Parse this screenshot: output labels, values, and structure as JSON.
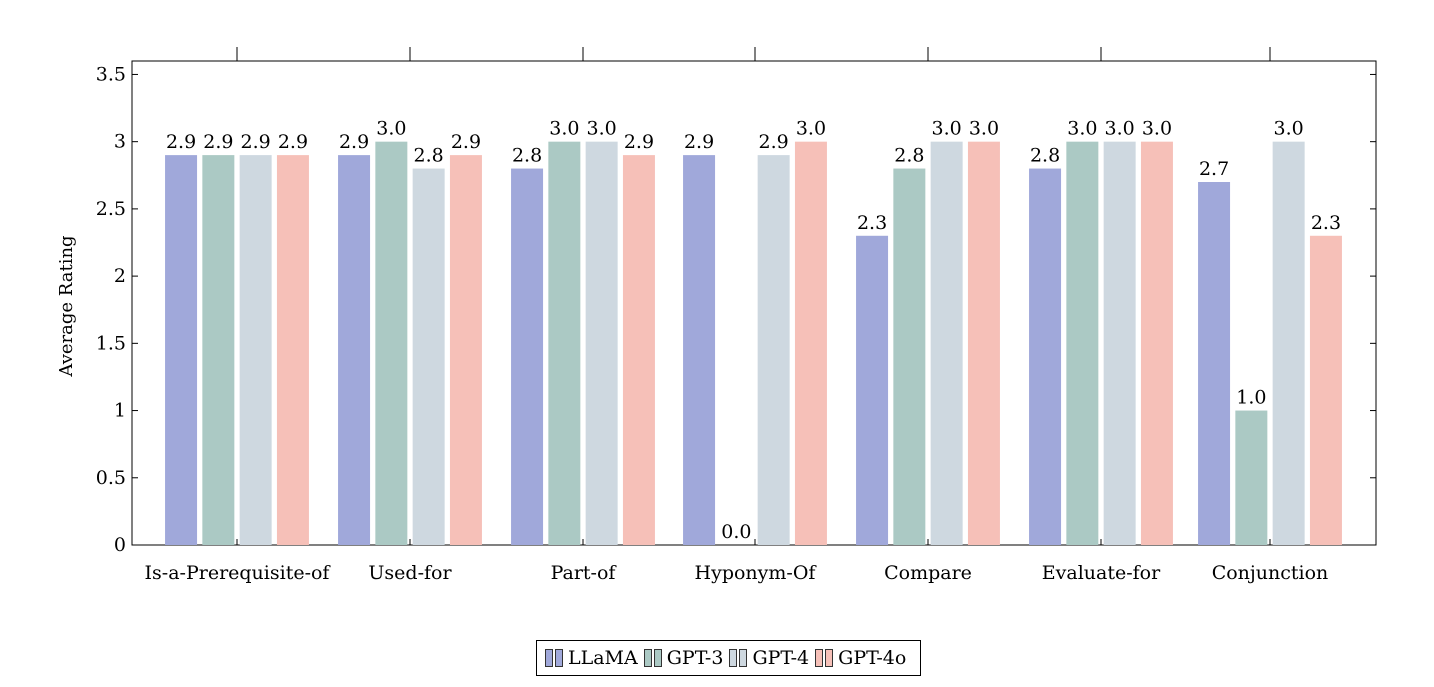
{
  "chart_data": {
    "type": "bar",
    "title": "",
    "xlabel": "",
    "ylabel": "Average Rating",
    "ylim": [
      0,
      3.6
    ],
    "yticks": [
      "0",
      "0.5",
      "1",
      "1.5",
      "2",
      "2.5",
      "3",
      "3.5"
    ],
    "categories": [
      "Is-a-Prerequisite-of",
      "Used-for",
      "Part-of",
      "Hyponym-Of",
      "Compare",
      "Evaluate-for",
      "Conjunction"
    ],
    "series": [
      {
        "name": "LLaMA",
        "color": "#a0a8da",
        "values": [
          2.9,
          2.9,
          2.8,
          2.9,
          2.3,
          2.8,
          2.7
        ],
        "labels": [
          "2.9",
          "2.9",
          "2.8",
          "2.9",
          "2.3",
          "2.8",
          "2.7"
        ]
      },
      {
        "name": "GPT-3",
        "color": "#abc9c4",
        "values": [
          2.9,
          3.0,
          3.0,
          0.0,
          2.8,
          3.0,
          1.0
        ],
        "labels": [
          "2.9",
          "3.0",
          "3.0",
          "0.0",
          "2.8",
          "3.0",
          "1.0"
        ]
      },
      {
        "name": "GPT-4",
        "color": "#ced8e0",
        "values": [
          2.9,
          2.8,
          3.0,
          2.9,
          3.0,
          3.0,
          3.0
        ],
        "labels": [
          "2.9",
          "2.8",
          "3.0",
          "2.9",
          "3.0",
          "3.0",
          "3.0"
        ]
      },
      {
        "name": "GPT-4o",
        "color": "#f6c0b8",
        "values": [
          2.9,
          2.9,
          2.9,
          3.0,
          3.0,
          3.0,
          2.3
        ],
        "labels": [
          "2.9",
          "2.9",
          "2.9",
          "3.0",
          "3.0",
          "3.0",
          "2.3"
        ]
      }
    ],
    "grid": false,
    "legend_position": "bottom-center"
  }
}
